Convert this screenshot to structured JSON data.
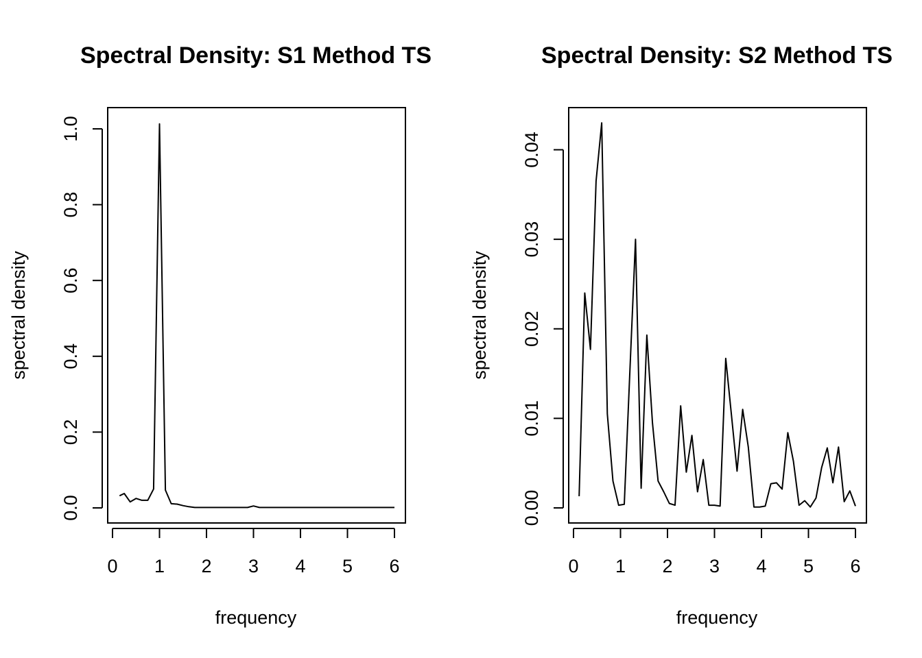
{
  "chart_data": [
    {
      "type": "line",
      "title": "Spectral Density: S1 Method TS",
      "xlabel": "frequency",
      "ylabel": "spectral density",
      "xlim": [
        0,
        6
      ],
      "ylim": [
        0,
        1.0
      ],
      "xticks": [
        "0",
        "1",
        "2",
        "3",
        "4",
        "5",
        "6"
      ],
      "yticks": [
        "0.0",
        "0.2",
        "0.4",
        "0.6",
        "0.8",
        "1.0"
      ],
      "grid": false,
      "series": [
        {
          "x": [
            0.15,
            0.25,
            0.375,
            0.5,
            0.625,
            0.75,
            0.875,
            1.0,
            1.125,
            1.25,
            1.375,
            1.5,
            1.625,
            1.75,
            2.0,
            2.5,
            2.875,
            3.0,
            3.125,
            3.5,
            4.0,
            4.5,
            5.0,
            5.5,
            6.0
          ],
          "y": [
            0.032,
            0.038,
            0.016,
            0.025,
            0.02,
            0.02,
            0.05,
            1.013,
            0.047,
            0.011,
            0.01,
            0.006,
            0.003,
            0.001,
            0.001,
            0.001,
            0.001,
            0.005,
            0.001,
            0.001,
            0.001,
            0.001,
            0.001,
            0.001,
            0.001
          ]
        }
      ]
    },
    {
      "type": "line",
      "title": "Spectral Density: S2 Method TS",
      "xlabel": "frequency",
      "ylabel": "spectral density",
      "xlim": [
        0,
        6
      ],
      "ylim": [
        0,
        0.04
      ],
      "xticks": [
        "0",
        "1",
        "2",
        "3",
        "4",
        "5",
        "6"
      ],
      "yticks": [
        "0.00",
        "0.01",
        "0.02",
        "0.03",
        "0.04"
      ],
      "grid": false,
      "series": [
        {
          "x": [
            0.12,
            0.24,
            0.36,
            0.48,
            0.6,
            0.72,
            0.84,
            0.96,
            1.08,
            1.2,
            1.32,
            1.44,
            1.56,
            1.68,
            1.8,
            1.92,
            2.04,
            2.16,
            2.28,
            2.4,
            2.52,
            2.64,
            2.76,
            2.88,
            3.0,
            3.12,
            3.24,
            3.36,
            3.48,
            3.6,
            3.72,
            3.84,
            3.96,
            4.08,
            4.2,
            4.32,
            4.44,
            4.56,
            4.68,
            4.8,
            4.92,
            5.04,
            5.16,
            5.28,
            5.4,
            5.52,
            5.64,
            5.76,
            5.88,
            6.0
          ],
          "y": [
            0.0013,
            0.024,
            0.0177,
            0.0365,
            0.043,
            0.0105,
            0.003,
            0.0003,
            0.0004,
            0.0153,
            0.03,
            0.0022,
            0.0193,
            0.0095,
            0.003,
            0.0018,
            0.0005,
            0.0003,
            0.0114,
            0.004,
            0.0081,
            0.0018,
            0.0054,
            0.0003,
            0.0003,
            0.0002,
            0.0167,
            0.0104,
            0.0041,
            0.011,
            0.0068,
            0.0001,
            0.0001,
            0.0002,
            0.0027,
            0.0028,
            0.0021,
            0.0084,
            0.0052,
            0.0003,
            0.0008,
            0.0001,
            0.0011,
            0.0045,
            0.0067,
            0.0028,
            0.0068,
            0.0007,
            0.0019,
            0.0002
          ]
        }
      ]
    }
  ]
}
